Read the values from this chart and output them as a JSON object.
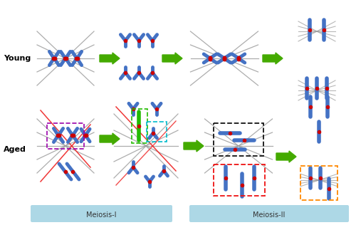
{
  "bg_color": "#ffffff",
  "label_young": "Young",
  "label_aged": "Aged",
  "label_meiosis1": "Meiosis-I",
  "label_meiosis2": "Meiosis-II",
  "meiosis_box_color": "#add8e6",
  "chr_blue": "#4472C4",
  "red_dot": "#CC0000",
  "green_arrow": "#44AA00",
  "spindle_color": "#999999",
  "red_spindle": "#EE2222",
  "purple_box": "#9900AA",
  "cyan_box": "#00BBCC",
  "green_box": "#22BB00",
  "black_box": "#111111",
  "red_box": "#EE1111",
  "orange_box": "#FF8800"
}
